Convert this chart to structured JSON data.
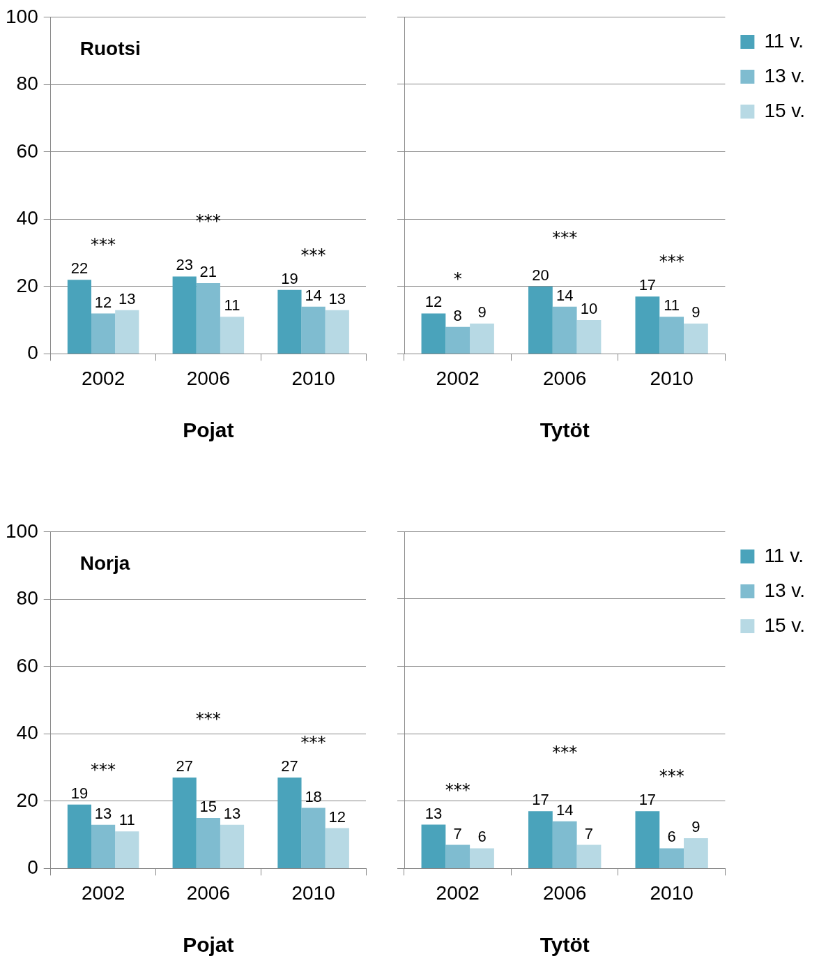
{
  "chart_data": [
    {
      "type": "bar",
      "title": "Ruotsi",
      "xlabel": "Pojat",
      "categories": [
        "2002",
        "2006",
        "2010"
      ],
      "series": [
        {
          "color": "#4aa3bb",
          "values": [
            22,
            23,
            19
          ]
        },
        {
          "color": "#7fbcd0",
          "values": [
            12,
            21,
            14
          ]
        },
        {
          "color": "#b7d9e4",
          "values": [
            13,
            11,
            13
          ]
        }
      ],
      "ylim": [
        0,
        100
      ],
      "yticks": [
        0,
        20,
        40,
        60,
        80,
        100
      ],
      "grid": "y",
      "legend": false,
      "data_labels": true,
      "annotations": [
        "***",
        "***",
        "***"
      ]
    },
    {
      "type": "bar",
      "xlabel": "Tytöt",
      "categories": [
        "2002",
        "2006",
        "2010"
      ],
      "series": [
        {
          "name": "11 v.",
          "color": "#4aa3bb",
          "values": [
            12,
            20,
            17
          ]
        },
        {
          "name": "13 v.",
          "color": "#7fbcd0",
          "values": [
            8,
            14,
            11
          ]
        },
        {
          "name": "15 v.",
          "color": "#b7d9e4",
          "values": [
            9,
            10,
            9
          ]
        }
      ],
      "ylim": [
        0,
        100
      ],
      "yticks": [
        0,
        20,
        40,
        60,
        80,
        100
      ],
      "grid": "y",
      "legend": "right",
      "tick_labels": "x",
      "data_labels": true,
      "annotations": [
        "*",
        "***",
        "***"
      ]
    },
    {
      "type": "bar",
      "title": "Norja",
      "xlabel": "Pojat",
      "categories": [
        "2002",
        "2006",
        "2010"
      ],
      "series": [
        {
          "color": "#4aa3bb",
          "values": [
            19,
            27,
            27
          ]
        },
        {
          "color": "#7fbcd0",
          "values": [
            13,
            15,
            18
          ]
        },
        {
          "color": "#b7d9e4",
          "values": [
            11,
            13,
            12
          ]
        }
      ],
      "ylim": [
        0,
        100
      ],
      "yticks": [
        0,
        20,
        40,
        60,
        80,
        100
      ],
      "grid": "y",
      "legend": false,
      "data_labels": true,
      "annotations": [
        "***",
        "***",
        "***"
      ]
    },
    {
      "type": "bar",
      "xlabel": "Tytöt",
      "categories": [
        "2002",
        "2006",
        "2010"
      ],
      "series": [
        {
          "name": "11 v.",
          "color": "#4aa3bb",
          "values": [
            13,
            17,
            17
          ]
        },
        {
          "name": "13 v.",
          "color": "#7fbcd0",
          "values": [
            7,
            14,
            6
          ]
        },
        {
          "name": "15 v.",
          "color": "#b7d9e4",
          "values": [
            6,
            7,
            9
          ]
        }
      ],
      "ylim": [
        0,
        100
      ],
      "yticks": [
        0,
        20,
        40,
        60,
        80,
        100
      ],
      "grid": "y",
      "legend": "right",
      "tick_labels": "x",
      "data_labels": true,
      "annotations": [
        "***",
        "***",
        "***"
      ]
    }
  ]
}
